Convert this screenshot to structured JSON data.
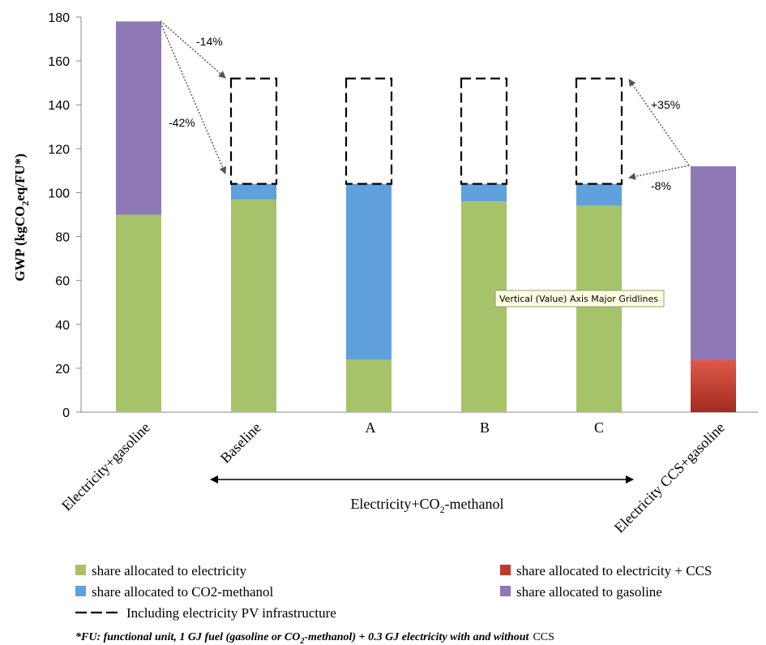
{
  "chart_data": {
    "type": "bar",
    "stacked": true,
    "ylabel_main": "GWP (kgCO",
    "ylabel_sub": "2",
    "ylabel_tail": "eq/FU*)",
    "ylim": [
      0,
      180
    ],
    "yticks": [
      "0",
      "20",
      "40",
      "60",
      "80",
      "100",
      "120",
      "140",
      "160",
      "180"
    ],
    "categories": [
      "Electricity+gasoline",
      "Baseline",
      "A",
      "B",
      "C",
      "Electricity CCS+gasoline"
    ],
    "series": [
      {
        "name": "share allocated to electricity",
        "color": "#a6c36a",
        "values": [
          90,
          97,
          24,
          96,
          94,
          0
        ]
      },
      {
        "name": "share allocated to electricity + CCS",
        "color": "#c0392b",
        "values": [
          0,
          0,
          0,
          0,
          0,
          24
        ]
      },
      {
        "name": "share allocated to CO2-methanol",
        "color": "#5fa0dd",
        "values": [
          0,
          7,
          80,
          8,
          10,
          0
        ]
      },
      {
        "name": "share allocated to gasoline",
        "color": "#8e78b5",
        "values": [
          88,
          0,
          0,
          0,
          0,
          88
        ]
      }
    ],
    "pv_infrastructure": {
      "name": "Including electricity PV infrastructure",
      "ranges": [
        null,
        [
          104,
          152
        ],
        [
          104,
          152
        ],
        [
          104,
          152
        ],
        [
          104,
          152
        ],
        null
      ]
    },
    "annotations": [
      {
        "text": "-14%"
      },
      {
        "text": "-42%"
      },
      {
        "text": "+35%"
      },
      {
        "text": "-8%"
      }
    ],
    "group_label_main": "Electricity+CO",
    "group_label_sub": "2",
    "group_label_tail": "-methanol",
    "tooltip": "Vertical (Value) Axis Major Gridlines",
    "footnote": {
      "lead": "*FU: functional unit, 1 GJ fuel (gasoline or CO",
      "sub": "2",
      "mid": "-methanol) + 0.3 GJ electricity with and without",
      "tail": "CCS"
    }
  }
}
